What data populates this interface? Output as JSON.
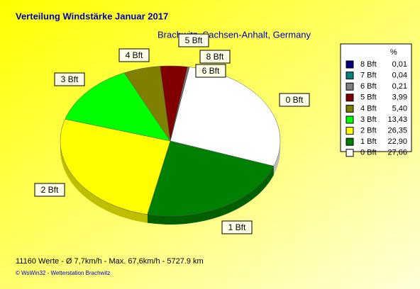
{
  "chart_data": {
    "type": "pie",
    "title": "Verteilung Windstärke  Januar 2017",
    "subtitle": "Brachwitz, Sachsen-Anhalt, Germany",
    "legend_header": "%",
    "categories": [
      "0 Bft",
      "1 Bft",
      "2 Bft",
      "3 Bft",
      "4 Bft",
      "5 Bft",
      "6 Bft",
      "7 Bft",
      "8 Bft"
    ],
    "values": [
      27.66,
      22.9,
      26.35,
      13.43,
      5.4,
      3.99,
      0.21,
      0.04,
      0.01
    ],
    "value_labels": [
      "27,66",
      "22,90",
      "26,35",
      "13,43",
      "5,40",
      "3,99",
      "0,21",
      "0,04",
      "0,01"
    ],
    "colors": [
      "#ffffff",
      "#008000",
      "#ffff00",
      "#00ff00",
      "#808000",
      "#800000",
      "#808080",
      "#008080",
      "#000080"
    ],
    "legend": "right",
    "footer": "11160 Werte   -   Ø 7,7km/h   -   Max. 67,6km/h   -   5727.9 km",
    "credit": "© WsWin32  -  Wetterstation Brachwitz"
  }
}
